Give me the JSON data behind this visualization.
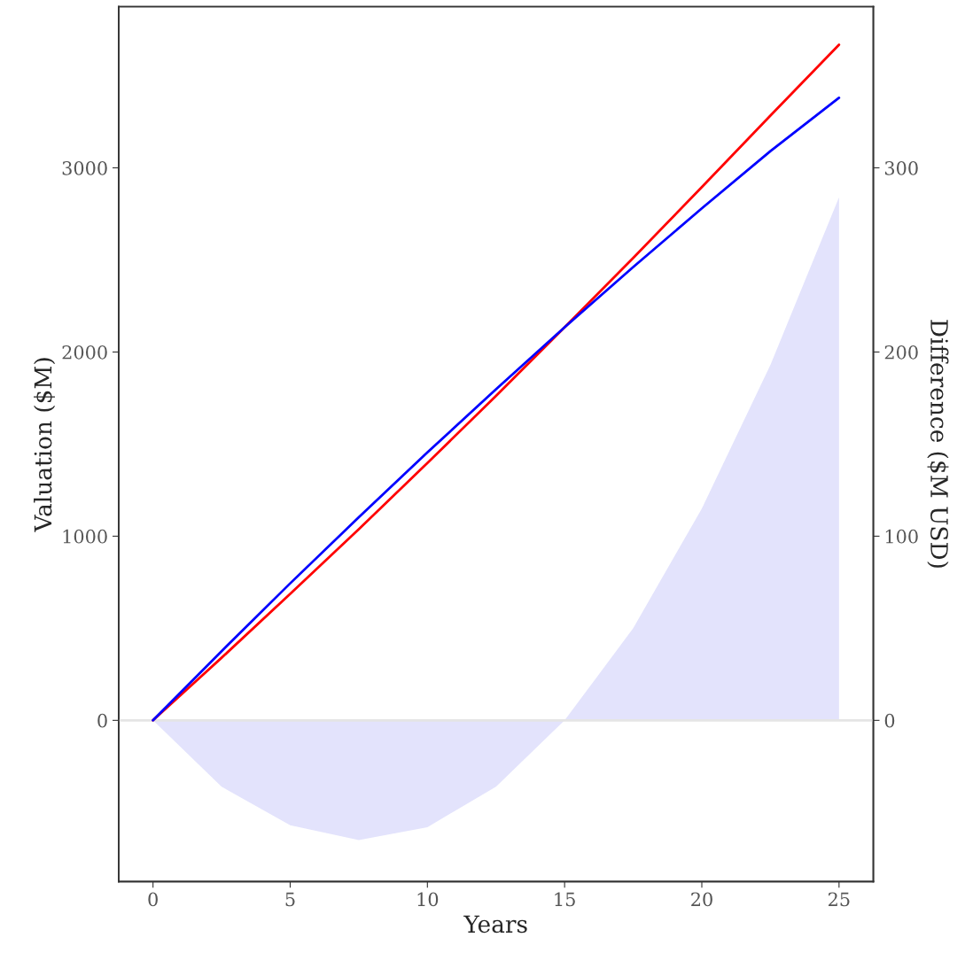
{
  "chart_data": {
    "type": "line",
    "xlabel": "Years",
    "ylabel": "Valuation ($M)",
    "y2label": "Difference ($M USD)",
    "x": [
      0,
      2.5,
      5,
      7.5,
      10,
      12.5,
      15,
      17.5,
      20,
      22.5,
      25
    ],
    "series": [
      {
        "type": "area",
        "axis": "y2",
        "color": "#e3e3fc",
        "values": [
          0,
          -36,
          -57,
          -65,
          -58,
          -36,
          0,
          50,
          115,
          193,
          284
        ]
      },
      {
        "color": "#ff0000",
        "values": [
          0,
          340,
          687,
          1038,
          1397,
          1762,
          2134,
          2511,
          2895,
          3284,
          3668
        ]
      },
      {
        "color": "#0000ff",
        "values": [
          0,
          376,
          744,
          1103,
          1455,
          1798,
          2134,
          2461,
          2780,
          3091,
          3380
        ]
      }
    ],
    "xlim": [
      -1.25,
      26.25
    ],
    "xticks": [
      0,
      5,
      10,
      15,
      20,
      25
    ],
    "ylim": [
      -875,
      3875
    ],
    "yticks": [
      0,
      1000,
      2000,
      3000
    ],
    "y2lim": [
      -87.5,
      387.5
    ],
    "y2ticks": [
      0,
      100,
      200,
      300
    ],
    "ref_lines": [
      {
        "axis": "y",
        "value": 0,
        "color": "#e5e5e5"
      }
    ],
    "grid": false
  }
}
